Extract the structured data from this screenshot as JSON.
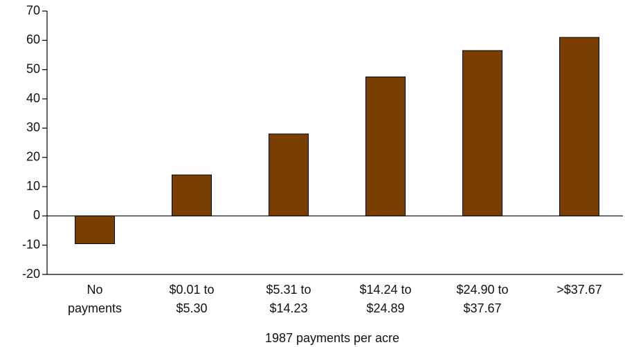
{
  "chart_data": {
    "type": "bar",
    "xlabel": "1987 payments per acre",
    "categories": [
      [
        "No",
        "payments"
      ],
      [
        "$0.01 to",
        "$5.30"
      ],
      [
        "$5.31 to",
        "$14.23"
      ],
      [
        "$14.24 to",
        "$24.89"
      ],
      [
        "$24.90 to",
        "$37.67"
      ],
      [
        ">$37.67"
      ]
    ],
    "values": [
      -9.5,
      14,
      28,
      47.5,
      56.5,
      61
    ],
    "color": "#7a3f00",
    "ylim": [
      -20,
      70
    ],
    "yticks": [
      -20,
      -10,
      0,
      10,
      20,
      30,
      40,
      50,
      60,
      70
    ],
    "grid": false
  }
}
